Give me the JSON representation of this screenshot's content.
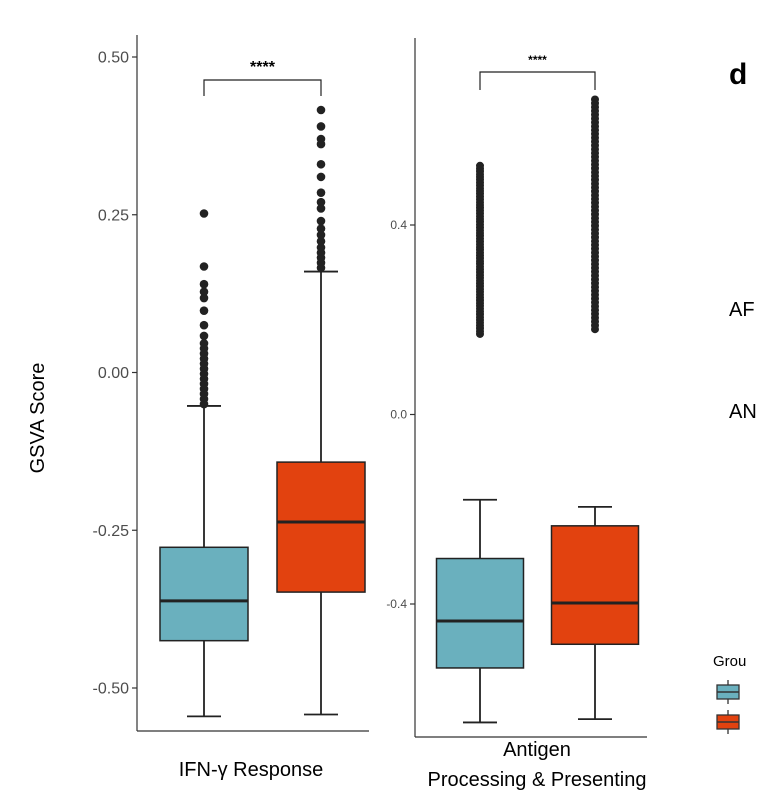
{
  "ylabel": "GSVA Score",
  "panel_letter": "d",
  "cropped_labels": [
    "AF",
    "AN"
  ],
  "legend": {
    "title": "Grou",
    "colors": [
      "#6AB0BE",
      "#E2420F"
    ]
  },
  "chart_data": [
    {
      "type": "box",
      "xlabel": "IFN-γ Response",
      "ylim": [
        -0.56,
        0.53
      ],
      "yticks": [
        0.5,
        0.25,
        0.0,
        -0.25,
        -0.5
      ],
      "ytick_labels": [
        "0.50",
        "0.25",
        "0.00",
        "-0.25",
        "-0.50"
      ],
      "significance": "****",
      "boxes": [
        {
          "color": "#6AB0BE",
          "q1": -0.425,
          "median": -0.362,
          "q3": -0.277,
          "whisker_low": -0.545,
          "whisker_high": -0.053,
          "outliers": [
            0.252,
            0.168,
            0.14,
            0.128,
            0.118,
            0.098,
            0.075,
            0.058,
            0.046,
            0.038,
            0.03,
            0.022,
            0.014,
            0.006,
            -0.002,
            -0.01,
            -0.018,
            -0.026,
            -0.034,
            -0.042,
            -0.05
          ]
        },
        {
          "color": "#E2420F",
          "q1": -0.348,
          "median": -0.237,
          "q3": -0.142,
          "whisker_low": -0.542,
          "whisker_high": 0.16,
          "outliers": [
            0.416,
            0.39,
            0.37,
            0.362,
            0.33,
            0.31,
            0.285,
            0.27,
            0.26,
            0.24,
            0.228,
            0.218,
            0.208,
            0.198,
            0.19,
            0.182,
            0.174,
            0.166
          ]
        }
      ]
    },
    {
      "type": "box",
      "xlabel": "Antigen\nProcessing & Presenting",
      "ylim": [
        -0.68,
        0.79
      ],
      "yticks": [
        0.4,
        0.0,
        -0.4
      ],
      "ytick_labels": [
        "0.4",
        "0.0",
        "-0.4"
      ],
      "significance": "****",
      "boxes": [
        {
          "color": "#6AB0BE",
          "q1": -0.535,
          "median": -0.436,
          "q3": -0.304,
          "whisker_low": -0.65,
          "whisker_high": -0.18,
          "outlier_range": [
            0.17,
            0.525
          ]
        },
        {
          "color": "#E2420F",
          "q1": -0.485,
          "median": -0.398,
          "q3": -0.235,
          "whisker_low": -0.643,
          "whisker_high": -0.195,
          "outlier_range": [
            0.18,
            0.665
          ]
        }
      ]
    }
  ]
}
